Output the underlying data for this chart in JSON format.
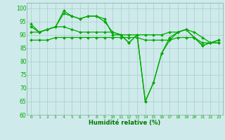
{
  "x": [
    0,
    1,
    2,
    3,
    4,
    5,
    6,
    7,
    8,
    9,
    10,
    11,
    12,
    13,
    14,
    15,
    16,
    17,
    18,
    19,
    20,
    21,
    22,
    23
  ],
  "line1": [
    94,
    91,
    92,
    93,
    99,
    97,
    96,
    97,
    97,
    96,
    90,
    90,
    87,
    90,
    65,
    72,
    83,
    88,
    91,
    92,
    89,
    86,
    87,
    87
  ],
  "line2": [
    93,
    91,
    92,
    93,
    98,
    97,
    96,
    97,
    97,
    95,
    91,
    90,
    87,
    90,
    65,
    72,
    83,
    89,
    91,
    92,
    89,
    86,
    87,
    87
  ],
  "line3": [
    91,
    91,
    92,
    93,
    93,
    92,
    91,
    91,
    91,
    91,
    91,
    90,
    90,
    90,
    90,
    90,
    90,
    91,
    91,
    92,
    91,
    89,
    87,
    88
  ],
  "line4": [
    88,
    88,
    88,
    89,
    89,
    89,
    89,
    89,
    89,
    89,
    89,
    89,
    89,
    89,
    88,
    88,
    88,
    88,
    89,
    89,
    89,
    87,
    87,
    88
  ],
  "bg_color": "#ceeaea",
  "grid_color": "#aacccc",
  "line_color": "#00aa00",
  "marker": "D",
  "markersize": 2.0,
  "linewidth": 0.9,
  "xlabel": "Humidité relative (%)",
  "xlabel_color": "#007700",
  "ylim": [
    60,
    102
  ],
  "yticks": [
    60,
    65,
    70,
    75,
    80,
    85,
    90,
    95,
    100
  ],
  "xticks": [
    0,
    1,
    2,
    3,
    4,
    5,
    6,
    7,
    8,
    9,
    10,
    11,
    12,
    13,
    14,
    15,
    16,
    17,
    18,
    19,
    20,
    21,
    22,
    23
  ]
}
